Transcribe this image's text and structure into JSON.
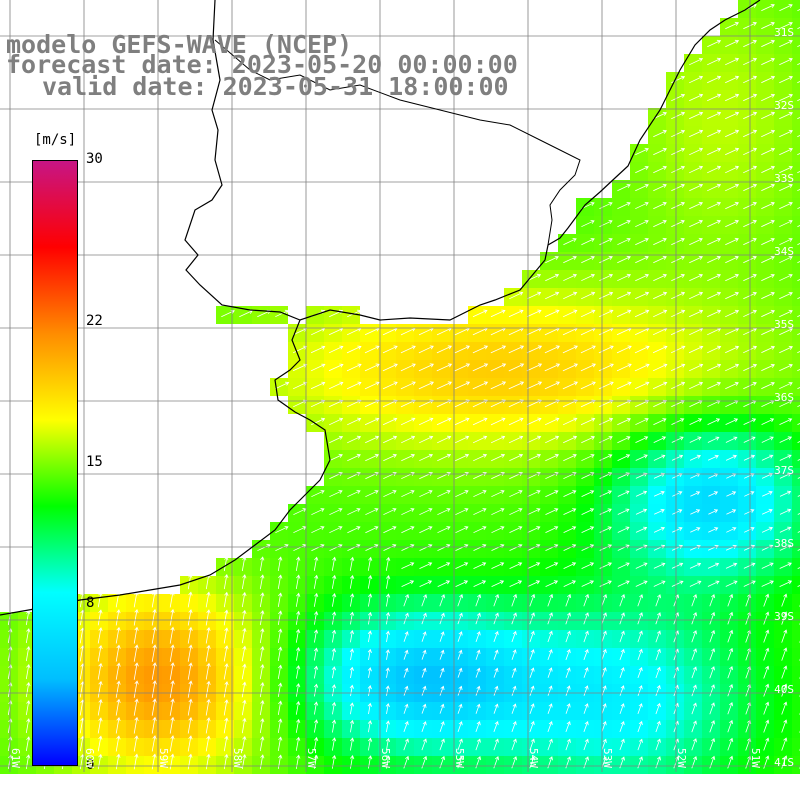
{
  "title": {
    "line1": "modelo GEFS-WAVE (NCEP)",
    "line2": "forecast date: 2023-05-20 00:00:00",
    "line3": "valid date: 2023-05-31 18:00:00"
  },
  "colorbar": {
    "unit": "[m/s]",
    "min": 0,
    "max": 30,
    "ticks": [
      "30",
      "22",
      "15",
      "8",
      "0"
    ],
    "tick_values": [
      30,
      22,
      15,
      8,
      0
    ],
    "stops": [
      "#0000ff",
      "#00bfff",
      "#00ffff",
      "#00ff00",
      "#ffff00",
      "#ff8c00",
      "#ff0000",
      "#c71585"
    ]
  },
  "lat_labels": [
    "31S",
    "32S",
    "33S",
    "34S",
    "35S",
    "36S",
    "37S",
    "38S",
    "39S",
    "40S",
    "41S"
  ],
  "lon_labels": [
    "61W",
    "60W",
    "59W",
    "58W",
    "57W",
    "56W",
    "55W",
    "54W",
    "53W",
    "52W",
    "51W"
  ],
  "colors": {
    "land": "#ffffff",
    "grid": "#808080",
    "coast": "#000000",
    "arrows": "#ffffff"
  }
}
